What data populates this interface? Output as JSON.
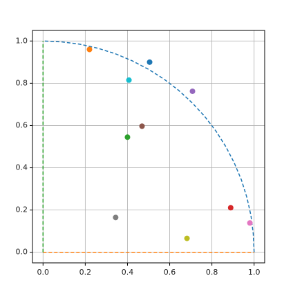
{
  "chart_data": {
    "type": "scatter",
    "x": [
      0.22,
      0.505,
      0.407,
      0.708,
      0.469,
      0.4,
      0.889,
      0.98,
      0.344,
      0.682
    ],
    "y": [
      0.96,
      0.9,
      0.815,
      0.762,
      0.597,
      0.545,
      0.211,
      0.139,
      0.165,
      0.066
    ],
    "colors": [
      "#ff7f0e",
      "#1f77b4",
      "#17becf",
      "#9467bd",
      "#8c564b",
      "#2ca02c",
      "#d62728",
      "#e377c2",
      "#7f7f7f",
      "#bcbd22"
    ],
    "lines": [
      {
        "color": "#1f77b4",
        "x": [
          1,
          0.996,
          0.985,
          0.966,
          0.94,
          0.906,
          0.866,
          0.819,
          0.766,
          0.707,
          0.643,
          0.574,
          0.5,
          0.423,
          0.342,
          0.259,
          0.174,
          0.087,
          0
        ],
        "y": [
          0,
          0.087,
          0.174,
          0.259,
          0.342,
          0.423,
          0.5,
          0.574,
          0.643,
          0.707,
          0.766,
          0.819,
          0.866,
          0.906,
          0.94,
          0.966,
          0.985,
          0.996,
          1
        ]
      },
      {
        "color": "#ff7f0e",
        "x": [
          0,
          1
        ],
        "y": [
          0,
          0
        ]
      },
      {
        "color": "#2ca02c",
        "x": [
          0,
          0
        ],
        "y": [
          0,
          1
        ]
      }
    ],
    "xlim": [
      -0.05,
      1.05
    ],
    "ylim": [
      -0.05,
      1.05
    ],
    "xticks": [
      {
        "value": 0,
        "label": "0.0"
      },
      {
        "value": 0.2,
        "label": "0.2"
      },
      {
        "value": 0.4,
        "label": "0.4"
      },
      {
        "value": 0.6,
        "label": "0.6"
      },
      {
        "value": 0.8,
        "label": "0.8"
      },
      {
        "value": 1,
        "label": "1.0"
      }
    ],
    "yticks": [
      {
        "value": 0,
        "label": "0.0"
      },
      {
        "value": 0.2,
        "label": "0.2"
      },
      {
        "value": 0.4,
        "label": "0.4"
      },
      {
        "value": 0.6,
        "label": "0.6"
      },
      {
        "value": 0.8,
        "label": "0.8"
      },
      {
        "value": 1,
        "label": "1.0"
      }
    ],
    "grid": true
  }
}
